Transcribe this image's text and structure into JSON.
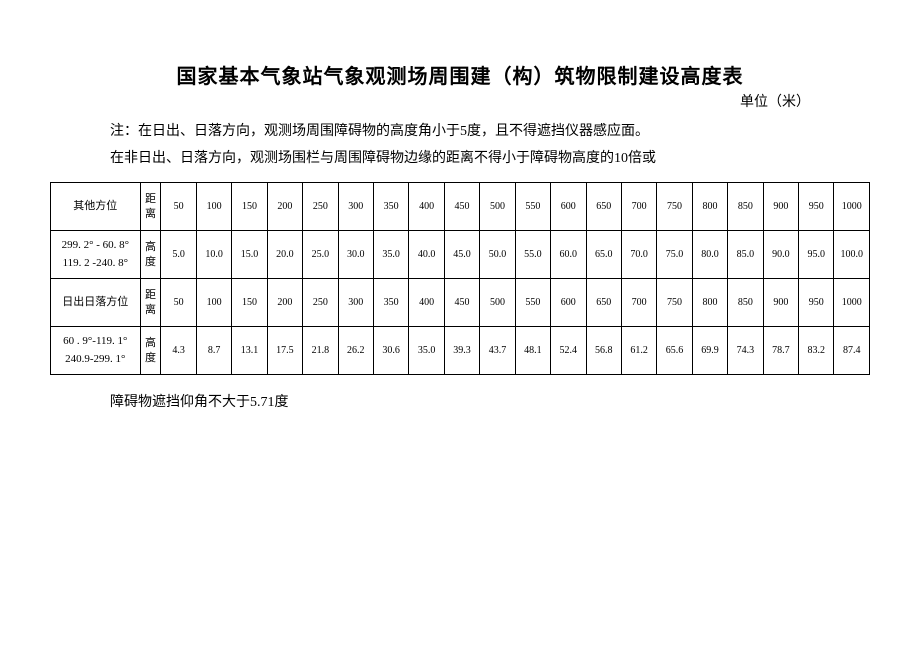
{
  "title": "国家基本气象站气象观测场周围建（构）筑物限制建设高度表",
  "unit_label": "单位（米）",
  "note_line1": "注：在日出、日落方向，观测场周围障碍物的高度角小于5度，且不得遮挡仪器感应面。",
  "note_line2": "在非日出、日落方向，观测场围栏与周围障碍物边缘的距离不得小于障碍物高度的10倍或",
  "footer_note": "障碍物遮挡仰角不大于5.71度",
  "table": {
    "row_labels": {
      "other_dir": "其他方位",
      "angle1": "299. 2° - 60. 8°\n119. 2 -240. 8°",
      "sun_dir": "日出日落方位",
      "angle2": "60 . 9°-119. 1°\n240.9-299. 1°",
      "dist": "距离",
      "height": "高度"
    },
    "distances": [
      "50",
      "100",
      "150",
      "200",
      "250",
      "300",
      "350",
      "400",
      "450",
      "500",
      "550",
      "600",
      "650",
      "700",
      "750",
      "800",
      "850",
      "900",
      "950",
      "1000"
    ],
    "heights1": [
      "5.0",
      "10.0",
      "15.0",
      "20.0",
      "25.0",
      "30.0",
      "35.0",
      "40.0",
      "45.0",
      "50.0",
      "55.0",
      "60.0",
      "65.0",
      "70.0",
      "75.0",
      "80.0",
      "85.0",
      "90.0",
      "95.0",
      "100.0"
    ],
    "heights2": [
      "4.3",
      "8.7",
      "13.1",
      "17.5",
      "21.8",
      "26.2",
      "30.6",
      "35.0",
      "39.3",
      "43.7",
      "48.1",
      "52.4",
      "56.8",
      "61.2",
      "65.6",
      "69.9",
      "74.3",
      "78.7",
      "83.2",
      "87.4"
    ]
  }
}
